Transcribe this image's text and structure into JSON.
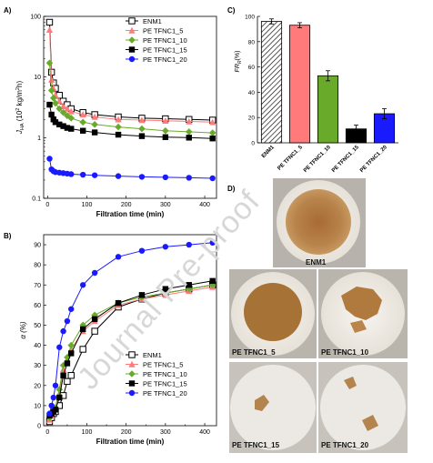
{
  "panels": {
    "a": "A)",
    "b": "B)",
    "c": "C)",
    "d": "D)"
  },
  "photo_labels": [
    "ENM1",
    "PE TFNC1_5",
    "PE TFNC1_10",
    "PE TFNC1_15",
    "PE TFNC1_20"
  ],
  "watermark": "Journal Pre-proof",
  "colors": {
    "ENM1": "#000000",
    "PE TFNC1_5": "#ff7b7b",
    "PE TFNC1_10": "#6aaa2a",
    "PE TFNC1_15": "#000000",
    "PE TFNC1_20": "#1a1aff"
  },
  "chart_data": [
    {
      "id": "A",
      "type": "scatter",
      "xlabel": "Filtration time (min)",
      "ylabel": "J_HA (10^2 kg/m^2h)",
      "xlim": [
        -10,
        430
      ],
      "ylim": [
        0.1,
        100
      ],
      "yscale": "log",
      "xticks": [
        0,
        100,
        200,
        300,
        400
      ],
      "yticks": [
        0.1,
        1,
        10,
        100
      ],
      "yticklabels": [
        "0.1",
        "1",
        "10",
        "100"
      ],
      "legend_position": "top-right",
      "series": [
        {
          "name": "ENM1",
          "marker": "open-square",
          "color": "#000000",
          "x": [
            5,
            10,
            15,
            20,
            30,
            40,
            50,
            60,
            90,
            120,
            180,
            240,
            300,
            360,
            420
          ],
          "y": [
            80,
            12,
            8,
            6.5,
            5,
            4,
            3.5,
            3,
            2.6,
            2.4,
            2.2,
            2.1,
            2.05,
            2.0,
            1.95
          ]
        },
        {
          "name": "PE TFNC1_5",
          "marker": "triangle",
          "color": "#ff7b7b",
          "x": [
            5,
            10,
            15,
            20,
            30,
            40,
            50,
            60,
            90,
            120,
            180,
            240,
            300,
            360,
            420
          ],
          "y": [
            60,
            9,
            6.5,
            5,
            4,
            3.3,
            3,
            2.7,
            2.4,
            2.2,
            2.0,
            1.95,
            1.9,
            1.85,
            1.8
          ]
        },
        {
          "name": "PE TFNC1_10",
          "marker": "diamond",
          "color": "#6aaa2a",
          "x": [
            5,
            10,
            15,
            20,
            30,
            40,
            50,
            60,
            90,
            120,
            180,
            240,
            300,
            360,
            420
          ],
          "y": [
            17,
            6,
            4.5,
            3.7,
            3,
            2.6,
            2.3,
            2.1,
            1.8,
            1.65,
            1.5,
            1.4,
            1.3,
            1.25,
            1.2
          ]
        },
        {
          "name": "PE TFNC1_15",
          "marker": "square",
          "color": "#000000",
          "x": [
            5,
            10,
            15,
            20,
            30,
            40,
            50,
            60,
            90,
            120,
            180,
            240,
            300,
            360,
            420
          ],
          "y": [
            3.5,
            2.4,
            2.0,
            1.8,
            1.65,
            1.55,
            1.45,
            1.4,
            1.3,
            1.22,
            1.12,
            1.06,
            1.02,
            1.0,
            0.97
          ]
        },
        {
          "name": "PE TFNC1_20",
          "marker": "circle",
          "color": "#1a1aff",
          "x": [
            5,
            10,
            15,
            20,
            30,
            40,
            50,
            60,
            90,
            120,
            180,
            240,
            300,
            360,
            420
          ],
          "y": [
            0.45,
            0.3,
            0.28,
            0.27,
            0.265,
            0.26,
            0.255,
            0.25,
            0.245,
            0.24,
            0.232,
            0.226,
            0.222,
            0.218,
            0.214
          ]
        }
      ]
    },
    {
      "id": "B",
      "type": "line",
      "xlabel": "Filtration time (min)",
      "ylabel": "α (%)",
      "xlim": [
        -10,
        430
      ],
      "ylim": [
        0,
        95
      ],
      "xticks": [
        0,
        100,
        200,
        300,
        400
      ],
      "yticks": [
        0,
        10,
        20,
        30,
        40,
        50,
        60,
        70,
        80,
        90
      ],
      "legend_position": "bottom-right",
      "series": [
        {
          "name": "ENM1",
          "marker": "open-square",
          "color": "#000000",
          "x": [
            5,
            10,
            15,
            20,
            30,
            40,
            50,
            60,
            90,
            120,
            180,
            240,
            300,
            360,
            420
          ],
          "y": [
            2,
            4,
            6,
            7,
            10,
            15,
            22,
            25,
            38,
            47,
            59,
            63,
            66,
            68,
            70
          ]
        },
        {
          "name": "PE TFNC1_5",
          "marker": "triangle",
          "color": "#ff7b7b",
          "x": [
            5,
            10,
            15,
            20,
            30,
            40,
            50,
            60,
            90,
            120,
            180,
            240,
            300,
            360,
            420
          ],
          "y": [
            3,
            5,
            7,
            8,
            16,
            28,
            33,
            38,
            47,
            52,
            60,
            63,
            65,
            67,
            69
          ]
        },
        {
          "name": "PE TFNC1_10",
          "marker": "diamond",
          "color": "#6aaa2a",
          "x": [
            5,
            10,
            15,
            20,
            30,
            40,
            50,
            60,
            90,
            120,
            180,
            240,
            300,
            360,
            420
          ],
          "y": [
            4,
            6,
            7,
            9,
            18,
            30,
            34,
            40,
            50,
            55,
            61,
            64,
            66,
            68,
            70
          ]
        },
        {
          "name": "PE TFNC1_15",
          "marker": "square",
          "color": "#000000",
          "x": [
            5,
            10,
            15,
            20,
            30,
            40,
            50,
            60,
            90,
            120,
            180,
            240,
            300,
            360,
            420
          ],
          "y": [
            5,
            6,
            7,
            8,
            14,
            25,
            31,
            36,
            48,
            53,
            61,
            65,
            68,
            70,
            72
          ]
        },
        {
          "name": "PE TFNC1_20",
          "marker": "circle",
          "color": "#1a1aff",
          "x": [
            5,
            10,
            15,
            20,
            30,
            40,
            50,
            60,
            90,
            120,
            180,
            240,
            300,
            360,
            420
          ],
          "y": [
            6,
            10,
            14,
            20,
            39,
            47,
            52,
            58,
            70,
            76,
            84,
            87,
            89,
            90,
            91
          ]
        }
      ]
    },
    {
      "id": "C",
      "type": "bar",
      "ylabel": "FR_R (%)",
      "ylim": [
        0,
        100
      ],
      "yticks": [
        0,
        20,
        40,
        60,
        80,
        100
      ],
      "categories": [
        "ENM1",
        "PE TFNC1_5",
        "PE TFNC1_10",
        "PE TFNC1_15",
        "PE TFNC1_20"
      ],
      "values": [
        96,
        93,
        53,
        11,
        23
      ],
      "errors": [
        2,
        2,
        4,
        3,
        4
      ],
      "colors": [
        "#ffffff",
        "#ff7b7b",
        "#6aaa2a",
        "#000000",
        "#1a1aff"
      ],
      "hatch": [
        true,
        false,
        false,
        false,
        false
      ]
    }
  ]
}
